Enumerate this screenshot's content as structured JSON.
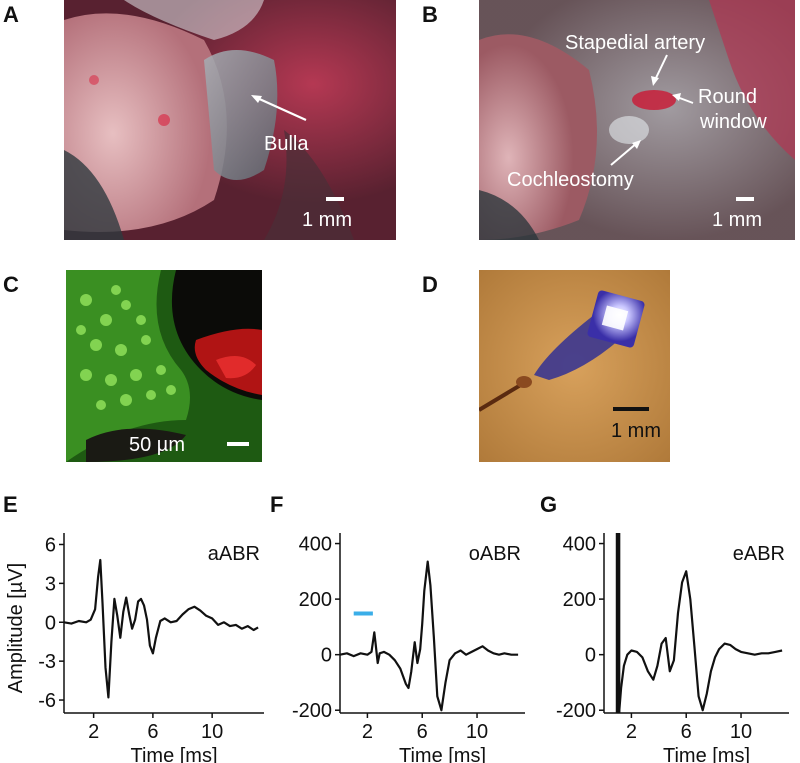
{
  "figure": {
    "panels": {
      "A": {
        "letter": "A",
        "labels": {
          "bulla": "Bulla"
        },
        "scale_bar": "1 mm"
      },
      "B": {
        "letter": "B",
        "labels": {
          "stapedial_artery": "Stapedial artery",
          "round_window_line1": "Round",
          "round_window_line2": "window",
          "cochleostomy": "Cochleostomy"
        },
        "scale_bar": "1 mm"
      },
      "C": {
        "letter": "C",
        "scale_bar": "50 µm"
      },
      "D": {
        "letter": "D",
        "scale_bar": "1 mm"
      },
      "E": {
        "letter": "E"
      },
      "F": {
        "letter": "F"
      },
      "G": {
        "letter": "G"
      }
    },
    "colors": {
      "trace": "#111111",
      "stimulus_bar": "#3aaee8",
      "fluorescence_green": "#5ad23a",
      "fluorescence_red": "#d01818"
    }
  },
  "chart_data": [
    {
      "type": "line",
      "panel": "E",
      "title": "aABR",
      "xlabel": "Time [ms]",
      "ylabel": "Amplitude [µV]",
      "xlim": [
        0,
        13.5
      ],
      "ylim": [
        -7,
        6.5
      ],
      "xticks": [
        2,
        6,
        10
      ],
      "yticks": [
        6,
        3,
        0,
        -3,
        -6
      ],
      "series": [
        {
          "x": [
            0,
            0.5,
            1,
            1.5,
            1.8,
            2.1,
            2.3,
            2.45,
            2.6,
            2.8,
            3.0,
            3.2,
            3.4,
            3.6,
            3.8,
            4.0,
            4.2,
            4.4,
            4.6,
            4.8,
            5.0,
            5.2,
            5.4,
            5.6,
            5.8,
            6.0,
            6.2,
            6.5,
            6.8,
            7.2,
            7.6,
            8.0,
            8.4,
            8.8,
            9.2,
            9.6,
            10.0,
            10.4,
            10.8,
            11.2,
            11.6,
            12.0,
            12.4,
            12.8,
            13.1
          ],
          "y": [
            0,
            -0.1,
            0.1,
            0,
            0.2,
            1.0,
            3.5,
            4.8,
            1.5,
            -3.5,
            -5.8,
            -1.5,
            1.8,
            0.5,
            -1.2,
            0.8,
            1.9,
            0.6,
            -0.5,
            0.2,
            1.6,
            1.8,
            1.3,
            0.2,
            -1.8,
            -2.4,
            -1.2,
            0.1,
            0.3,
            0,
            0.1,
            0.6,
            1.0,
            1.2,
            0.9,
            0.5,
            0.3,
            -0.2,
            0,
            -0.3,
            -0.2,
            -0.5,
            -0.3,
            -0.6,
            -0.4
          ]
        }
      ]
    },
    {
      "type": "line",
      "panel": "F",
      "title": "oABR",
      "xlabel": "Time [ms]",
      "ylabel": "",
      "xlim": [
        0,
        13.5
      ],
      "ylim": [
        -210,
        420
      ],
      "xticks": [
        2,
        6,
        10
      ],
      "yticks": [
        400,
        200,
        0,
        -200
      ],
      "stimulus": {
        "start": 1,
        "end": 2.4,
        "level": 148
      },
      "series": [
        {
          "x": [
            0,
            0.5,
            1.0,
            1.5,
            2.0,
            2.3,
            2.5,
            2.6,
            2.75,
            2.9,
            3.2,
            3.6,
            4.0,
            4.4,
            4.8,
            5.0,
            5.2,
            5.45,
            5.65,
            5.85,
            6.0,
            6.15,
            6.4,
            6.6,
            6.85,
            7.1,
            7.4,
            7.7,
            8.0,
            8.4,
            8.8,
            9.2,
            9.6,
            10.0,
            10.4,
            10.8,
            11.2,
            11.6,
            12.0,
            12.5,
            13.0
          ],
          "y": [
            0,
            5,
            -5,
            5,
            0,
            10,
            80,
            40,
            -30,
            5,
            10,
            0,
            -20,
            -50,
            -105,
            -120,
            -60,
            45,
            -30,
            20,
            110,
            230,
            335,
            250,
            60,
            -150,
            -200,
            -100,
            -20,
            5,
            15,
            0,
            10,
            20,
            30,
            15,
            5,
            0,
            5,
            0,
            0
          ]
        }
      ]
    },
    {
      "type": "line",
      "panel": "G",
      "title": "eABR",
      "xlabel": "Time [ms]",
      "ylabel": "",
      "xlim": [
        0,
        13.5
      ],
      "ylim": [
        -210,
        420
      ],
      "xticks": [
        2,
        6,
        10
      ],
      "yticks": [
        400,
        200,
        0,
        -200
      ],
      "series": [
        {
          "x": [
            1.1,
            1.25,
            1.45,
            1.7,
            2.0,
            2.4,
            2.8,
            3.2,
            3.6,
            3.9,
            4.2,
            4.5,
            4.8,
            5.1,
            5.4,
            5.7,
            6.0,
            6.3,
            6.6,
            6.9,
            7.2,
            7.5,
            7.8,
            8.1,
            8.4,
            8.8,
            9.2,
            9.6,
            10.0,
            10.5,
            11.0,
            11.5,
            12.0,
            12.5,
            13.0
          ],
          "y": [
            -210,
            -120,
            -40,
            0,
            15,
            10,
            -10,
            -60,
            -90,
            -40,
            40,
            60,
            -60,
            -20,
            150,
            260,
            300,
            200,
            30,
            -150,
            -200,
            -140,
            -60,
            -10,
            20,
            40,
            35,
            20,
            10,
            5,
            0,
            5,
            5,
            10,
            15
          ]
        }
      ],
      "artifact_x": [
        0.95,
        1.1
      ]
    }
  ]
}
